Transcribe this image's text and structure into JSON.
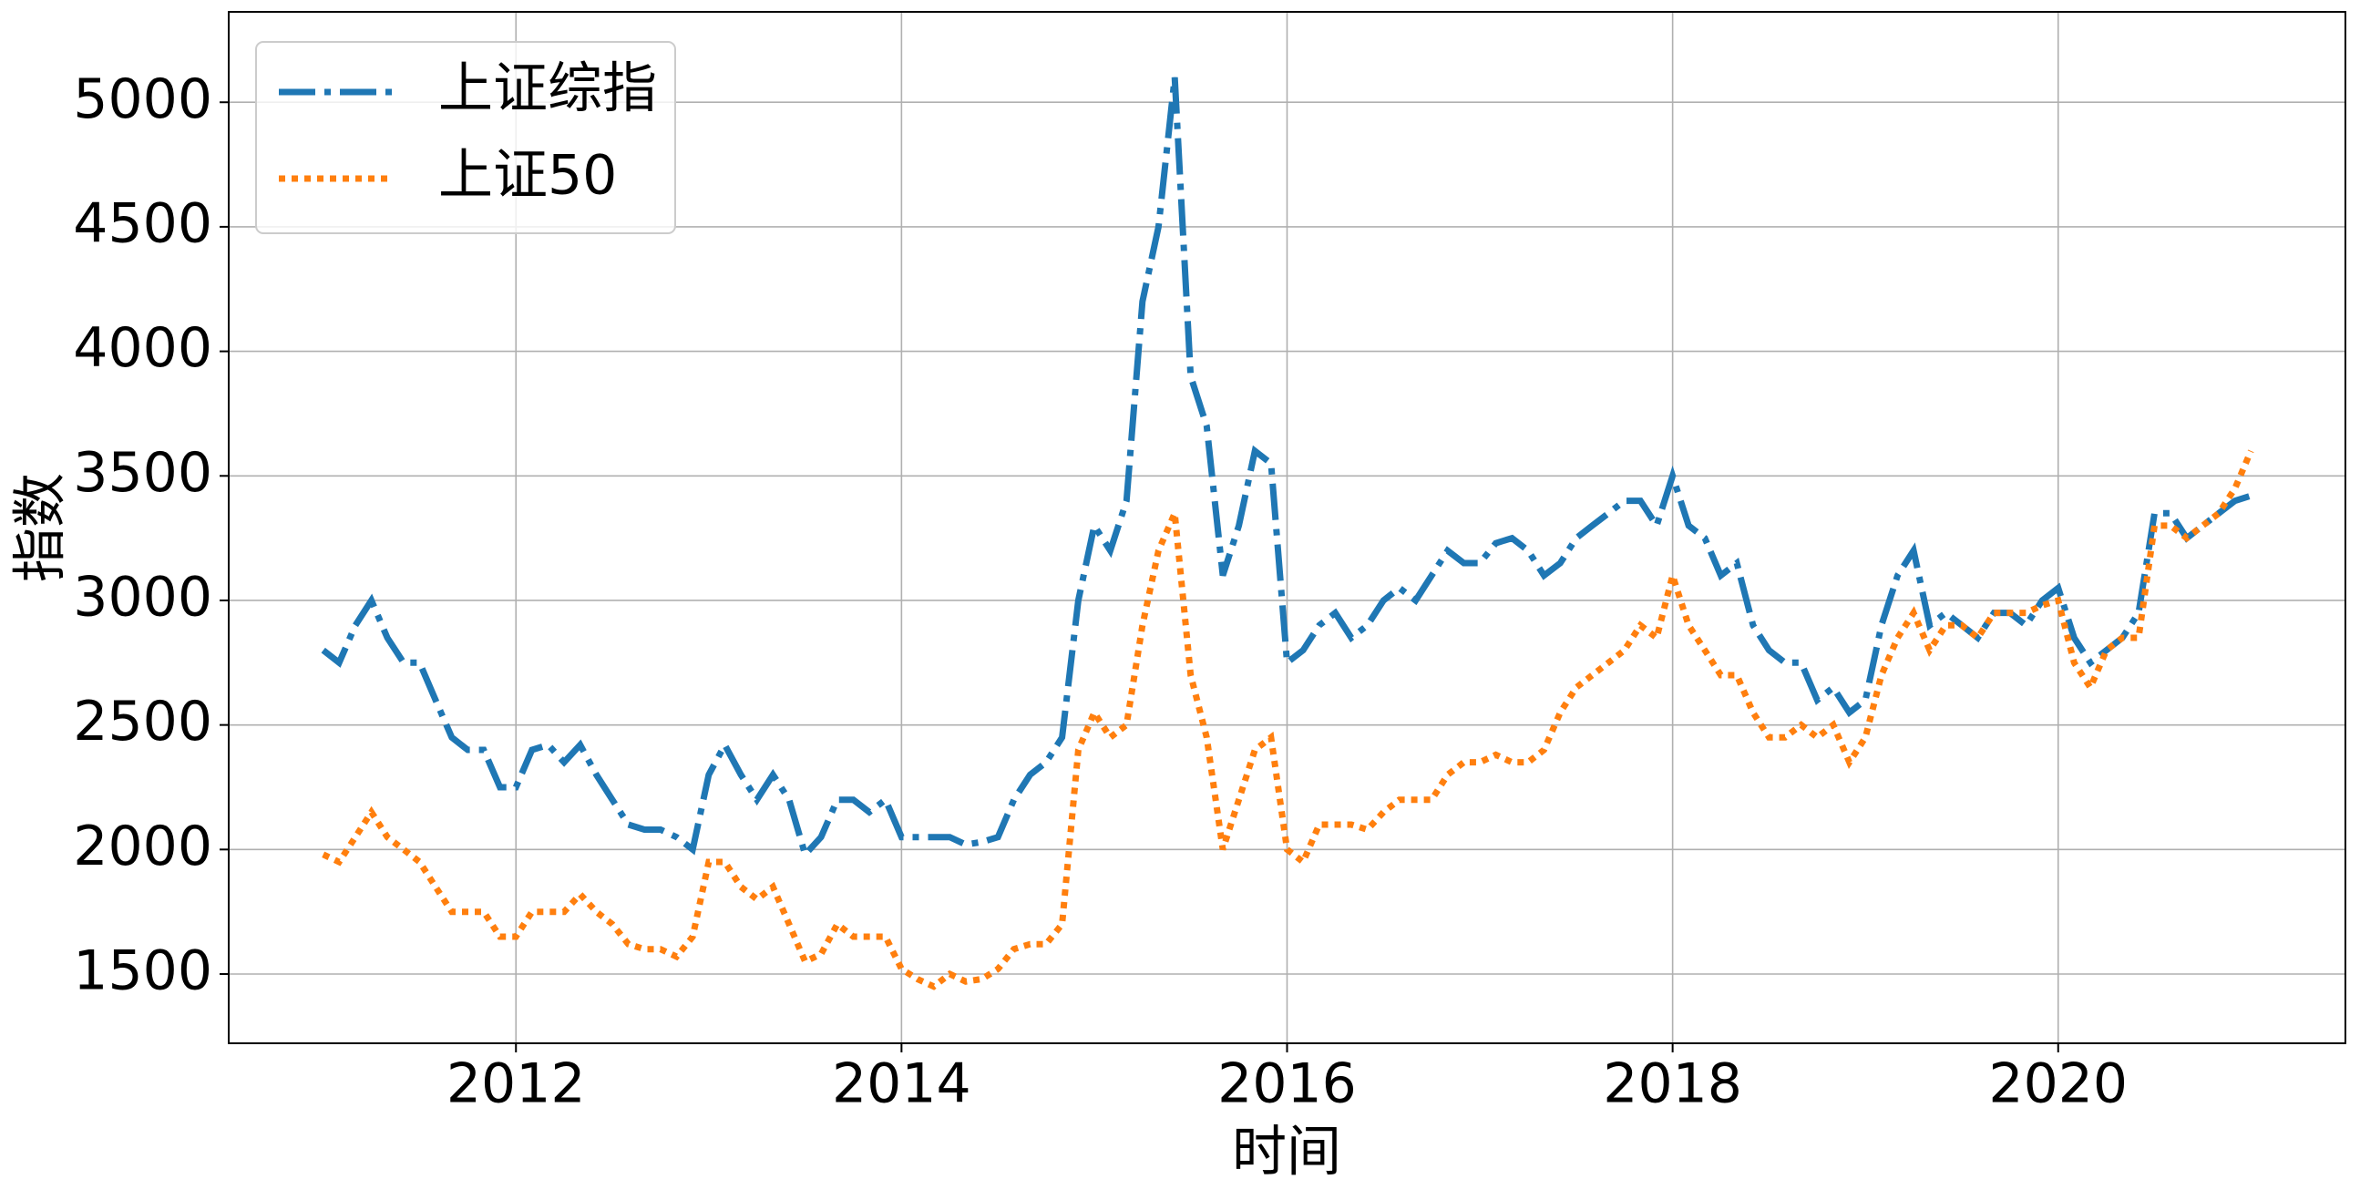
{
  "chart_data": {
    "type": "line",
    "xlabel": "时间",
    "ylabel": "指数",
    "x": [
      2011,
      2011.083,
      2011.167,
      2011.25,
      2011.333,
      2011.417,
      2011.5,
      2011.583,
      2011.667,
      2011.75,
      2011.833,
      2011.917,
      2012,
      2012.083,
      2012.167,
      2012.25,
      2012.333,
      2012.417,
      2012.5,
      2012.583,
      2012.667,
      2012.75,
      2012.833,
      2012.917,
      2013,
      2013.083,
      2013.167,
      2013.25,
      2013.333,
      2013.417,
      2013.5,
      2013.583,
      2013.667,
      2013.75,
      2013.833,
      2013.917,
      2014,
      2014.083,
      2014.167,
      2014.25,
      2014.333,
      2014.417,
      2014.5,
      2014.583,
      2014.667,
      2014.75,
      2014.833,
      2014.917,
      2015,
      2015.083,
      2015.167,
      2015.25,
      2015.333,
      2015.417,
      2015.5,
      2015.583,
      2015.667,
      2015.75,
      2015.833,
      2015.917,
      2016,
      2016.083,
      2016.167,
      2016.25,
      2016.333,
      2016.417,
      2016.5,
      2016.583,
      2016.667,
      2016.75,
      2016.833,
      2016.917,
      2017,
      2017.083,
      2017.167,
      2017.25,
      2017.333,
      2017.417,
      2017.5,
      2017.583,
      2017.667,
      2017.75,
      2017.833,
      2017.917,
      2018,
      2018.083,
      2018.167,
      2018.25,
      2018.333,
      2018.417,
      2018.5,
      2018.583,
      2018.667,
      2018.75,
      2018.833,
      2018.917,
      2019,
      2019.083,
      2019.167,
      2019.25,
      2019.333,
      2019.417,
      2019.5,
      2019.583,
      2019.667,
      2019.75,
      2019.833,
      2019.917,
      2020,
      2020.083,
      2020.167,
      2020.25,
      2020.333,
      2020.417,
      2020.5,
      2020.583,
      2020.667,
      2020.75,
      2020.833,
      2020.917,
      2021
    ],
    "series": [
      {
        "name": "上证综指",
        "color": "#1f77b4",
        "linestyle": "dashdot",
        "values": [
          2800,
          2750,
          2900,
          3000,
          2850,
          2750,
          2750,
          2600,
          2450,
          2400,
          2400,
          2250,
          2250,
          2400,
          2420,
          2350,
          2420,
          2300,
          2200,
          2100,
          2080,
          2080,
          2050,
          2000,
          2300,
          2420,
          2300,
          2200,
          2300,
          2200,
          1980,
          2050,
          2200,
          2200,
          2150,
          2200,
          2050,
          2050,
          2050,
          2050,
          2020,
          2030,
          2050,
          2200,
          2300,
          2350,
          2450,
          3000,
          3300,
          3200,
          3400,
          4200,
          4500,
          5100,
          3900,
          3700,
          3100,
          3300,
          3600,
          3550,
          2750,
          2800,
          2900,
          2950,
          2850,
          2900,
          3000,
          3050,
          3000,
          3100,
          3200,
          3150,
          3150,
          3230,
          3250,
          3200,
          3100,
          3150,
          3250,
          3300,
          3350,
          3400,
          3400,
          3300,
          3500,
          3300,
          3250,
          3100,
          3150,
          2900,
          2800,
          2750,
          2750,
          2600,
          2650,
          2550,
          2600,
          2900,
          3100,
          3200,
          2900,
          2950,
          2900,
          2850,
          2950,
          2950,
          2900,
          3000,
          3050,
          2850,
          2750,
          2800,
          2850,
          2950,
          3350,
          3350,
          3250,
          3300,
          3350,
          3400,
          3420
        ]
      },
      {
        "name": "上证50",
        "color": "#ff7f0e",
        "linestyle": "dotted",
        "values": [
          1980,
          1950,
          2050,
          2150,
          2050,
          2000,
          1950,
          1850,
          1750,
          1750,
          1750,
          1650,
          1650,
          1750,
          1750,
          1750,
          1820,
          1750,
          1700,
          1620,
          1600,
          1600,
          1570,
          1650,
          1950,
          1950,
          1850,
          1800,
          1850,
          1700,
          1550,
          1580,
          1700,
          1650,
          1650,
          1650,
          1520,
          1480,
          1450,
          1500,
          1470,
          1480,
          1520,
          1600,
          1620,
          1620,
          1700,
          2400,
          2550,
          2450,
          2500,
          2900,
          3200,
          3350,
          2700,
          2450,
          2000,
          2200,
          2400,
          2450,
          2000,
          1950,
          2100,
          2100,
          2100,
          2080,
          2150,
          2200,
          2200,
          2200,
          2300,
          2350,
          2350,
          2380,
          2350,
          2350,
          2400,
          2550,
          2650,
          2700,
          2750,
          2800,
          2900,
          2850,
          3100,
          2900,
          2800,
          2700,
          2700,
          2550,
          2450,
          2450,
          2500,
          2450,
          2500,
          2350,
          2450,
          2700,
          2850,
          2950,
          2800,
          2900,
          2900,
          2850,
          2950,
          2950,
          2950,
          2980,
          3000,
          2750,
          2650,
          2800,
          2850,
          2850,
          3300,
          3300,
          3250,
          3300,
          3350,
          3450,
          3600
        ]
      }
    ],
    "xlim": [
      2010.51,
      2021.49
    ],
    "xticks": [
      2012,
      2014,
      2016,
      2018,
      2020
    ],
    "ylim": [
      1222,
      5363
    ],
    "yticks": [
      1500,
      2000,
      2500,
      3000,
      3500,
      4000,
      4500,
      5000
    ],
    "grid": true,
    "legend": "upper left"
  }
}
